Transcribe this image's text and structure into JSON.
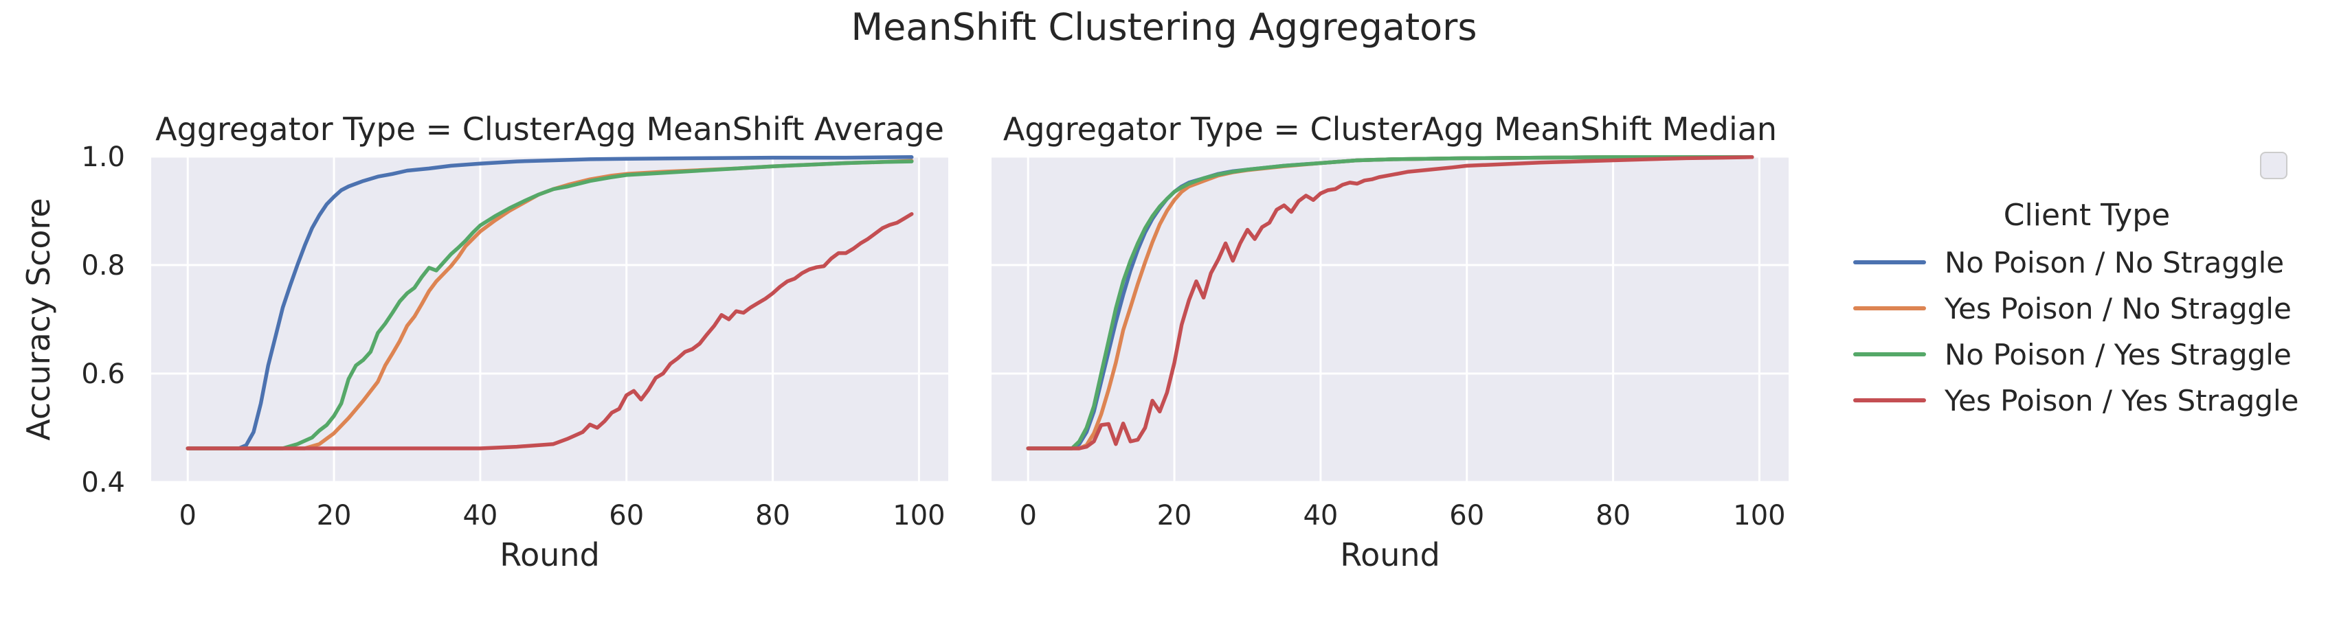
{
  "figure": {
    "title": "MeanShift Clustering Aggregators"
  },
  "legend": {
    "title": "Client Type",
    "entries": [
      {
        "name": "No Poison / No Straggle",
        "color": "#4c72b0"
      },
      {
        "name": "Yes Poison / No Straggle",
        "color": "#dd8452"
      },
      {
        "name": "No Poison / Yes Straggle",
        "color": "#55a868"
      },
      {
        "name": "Yes Poison / Yes Straggle",
        "color": "#c44e52"
      }
    ],
    "placement": "right"
  },
  "chart_data": [
    {
      "type": "line",
      "title": "Aggregator Type = ClusterAgg MeanShift Average",
      "xlabel": "Round",
      "ylabel": "Accuracy Score",
      "xlim": [
        -5,
        104
      ],
      "ylim": [
        0.4,
        1.0
      ],
      "xticks": [
        0,
        20,
        40,
        60,
        80,
        100
      ],
      "yticks": [
        0.4,
        0.6,
        0.8,
        1.0
      ],
      "xtick_labels": [
        "0",
        "20",
        "40",
        "60",
        "80",
        "100"
      ],
      "ytick_labels": [
        "0.4",
        "0.6",
        "0.8",
        "1.0"
      ],
      "grid": true,
      "series": [
        {
          "name": "No Poison / No Straggle",
          "color": "#4c72b0",
          "x": [
            0,
            7,
            8,
            9,
            10,
            11,
            12,
            13,
            14,
            15,
            16,
            17,
            18,
            19,
            20,
            21,
            22,
            24,
            26,
            28,
            30,
            33,
            36,
            40,
            45,
            50,
            55,
            60,
            70,
            80,
            90,
            99
          ],
          "y": [
            0.462,
            0.462,
            0.468,
            0.492,
            0.545,
            0.615,
            0.668,
            0.722,
            0.762,
            0.8,
            0.836,
            0.868,
            0.892,
            0.912,
            0.926,
            0.938,
            0.945,
            0.955,
            0.963,
            0.968,
            0.974,
            0.978,
            0.983,
            0.987,
            0.991,
            0.993,
            0.995,
            0.996,
            0.997,
            0.998,
            0.998,
            0.999
          ]
        },
        {
          "name": "Yes Poison / No Straggle",
          "color": "#dd8452",
          "x": [
            0,
            16,
            18,
            20,
            22,
            24,
            26,
            27,
            28,
            29,
            30,
            31,
            32,
            33,
            34,
            35,
            36,
            37,
            38,
            40,
            42,
            44,
            46,
            48,
            50,
            52,
            55,
            58,
            60,
            65,
            70,
            75,
            80,
            85,
            90,
            95,
            99
          ],
          "y": [
            0.462,
            0.462,
            0.47,
            0.49,
            0.518,
            0.55,
            0.585,
            0.615,
            0.637,
            0.66,
            0.688,
            0.705,
            0.728,
            0.752,
            0.77,
            0.784,
            0.798,
            0.815,
            0.835,
            0.862,
            0.882,
            0.9,
            0.915,
            0.93,
            0.94,
            0.948,
            0.958,
            0.965,
            0.968,
            0.972,
            0.975,
            0.978,
            0.982,
            0.985,
            0.988,
            0.99,
            0.992
          ]
        },
        {
          "name": "No Poison / Yes Straggle",
          "color": "#55a868",
          "x": [
            0,
            13,
            15,
            17,
            18,
            19,
            20,
            21,
            22,
            23,
            24,
            25,
            26,
            27,
            28,
            29,
            30,
            31,
            32,
            33,
            34,
            35,
            36,
            37,
            38,
            39,
            40,
            42,
            44,
            46,
            48,
            50,
            52,
            55,
            58,
            60,
            65,
            70,
            75,
            80,
            85,
            90,
            95,
            99
          ],
          "y": [
            0.462,
            0.462,
            0.47,
            0.482,
            0.495,
            0.505,
            0.522,
            0.545,
            0.59,
            0.615,
            0.625,
            0.64,
            0.675,
            0.692,
            0.712,
            0.733,
            0.748,
            0.758,
            0.778,
            0.795,
            0.79,
            0.805,
            0.82,
            0.832,
            0.845,
            0.86,
            0.873,
            0.89,
            0.905,
            0.918,
            0.93,
            0.94,
            0.945,
            0.955,
            0.962,
            0.966,
            0.97,
            0.974,
            0.978,
            0.982,
            0.985,
            0.988,
            0.99,
            0.991
          ]
        },
        {
          "name": "Yes Poison / Yes Straggle",
          "color": "#c44e52",
          "x": [
            0,
            40,
            45,
            50,
            52,
            54,
            55,
            56,
            57,
            58,
            59,
            60,
            61,
            62,
            63,
            64,
            65,
            66,
            67,
            68,
            69,
            70,
            71,
            72,
            73,
            74,
            75,
            76,
            77,
            78,
            79,
            80,
            81,
            82,
            83,
            84,
            85,
            86,
            87,
            88,
            89,
            90,
            91,
            92,
            93,
            94,
            95,
            96,
            97,
            98,
            99
          ],
          "y": [
            0.462,
            0.462,
            0.465,
            0.47,
            0.48,
            0.492,
            0.506,
            0.5,
            0.512,
            0.528,
            0.535,
            0.56,
            0.568,
            0.552,
            0.57,
            0.592,
            0.6,
            0.618,
            0.628,
            0.64,
            0.645,
            0.655,
            0.672,
            0.688,
            0.708,
            0.7,
            0.715,
            0.712,
            0.722,
            0.73,
            0.738,
            0.748,
            0.76,
            0.77,
            0.775,
            0.785,
            0.792,
            0.796,
            0.798,
            0.812,
            0.822,
            0.822,
            0.83,
            0.84,
            0.848,
            0.858,
            0.868,
            0.874,
            0.878,
            0.886,
            0.894
          ]
        }
      ]
    },
    {
      "type": "line",
      "title": "Aggregator Type = ClusterAgg MeanShift Median",
      "xlabel": "Round",
      "ylabel": "",
      "xlim": [
        -5,
        104
      ],
      "ylim": [
        0.4,
        1.0
      ],
      "xticks": [
        0,
        20,
        40,
        60,
        80,
        100
      ],
      "yticks": [
        0.4,
        0.6,
        0.8,
        1.0
      ],
      "xtick_labels": [
        "0",
        "20",
        "40",
        "60",
        "80",
        "100"
      ],
      "ytick_labels": [],
      "grid": true,
      "series": [
        {
          "name": "No Poison / No Straggle",
          "color": "#4c72b0",
          "x": [
            0,
            6,
            7,
            8,
            9,
            10,
            11,
            12,
            13,
            14,
            15,
            16,
            17,
            18,
            19,
            20,
            21,
            22,
            24,
            26,
            28,
            30,
            35,
            40,
            45,
            50,
            60,
            70,
            80,
            90,
            99
          ],
          "y": [
            0.462,
            0.462,
            0.47,
            0.492,
            0.53,
            0.585,
            0.64,
            0.695,
            0.745,
            0.79,
            0.828,
            0.86,
            0.885,
            0.905,
            0.922,
            0.935,
            0.945,
            0.952,
            0.96,
            0.968,
            0.973,
            0.976,
            0.983,
            0.988,
            0.993,
            0.995,
            0.997,
            0.998,
            0.999,
            0.999,
            0.999
          ]
        },
        {
          "name": "Yes Poison / No Straggle",
          "color": "#dd8452",
          "x": [
            0,
            7,
            8,
            9,
            10,
            11,
            12,
            13,
            14,
            15,
            16,
            17,
            18,
            19,
            20,
            21,
            22,
            24,
            26,
            28,
            30,
            35,
            40,
            45,
            50,
            60,
            70,
            80,
            90,
            99
          ],
          "y": [
            0.462,
            0.462,
            0.468,
            0.49,
            0.525,
            0.57,
            0.62,
            0.68,
            0.722,
            0.765,
            0.805,
            0.842,
            0.875,
            0.9,
            0.92,
            0.935,
            0.945,
            0.955,
            0.965,
            0.971,
            0.975,
            0.982,
            0.988,
            0.993,
            0.995,
            0.997,
            0.998,
            0.999,
            0.999,
            0.999
          ]
        },
        {
          "name": "No Poison / Yes Straggle",
          "color": "#55a868",
          "x": [
            0,
            6,
            7,
            8,
            9,
            10,
            11,
            12,
            13,
            14,
            15,
            16,
            17,
            18,
            19,
            20,
            21,
            22,
            24,
            26,
            28,
            30,
            35,
            40,
            45,
            50,
            60,
            70,
            80,
            90,
            99
          ],
          "y": [
            0.462,
            0.462,
            0.475,
            0.5,
            0.54,
            0.6,
            0.66,
            0.72,
            0.77,
            0.808,
            0.84,
            0.868,
            0.89,
            0.908,
            0.922,
            0.935,
            0.943,
            0.95,
            0.96,
            0.967,
            0.972,
            0.976,
            0.983,
            0.988,
            0.993,
            0.995,
            0.997,
            0.998,
            0.999,
            0.999,
            0.999
          ]
        },
        {
          "name": "Yes Poison / Yes Straggle",
          "color": "#c44e52",
          "x": [
            0,
            7,
            8,
            9,
            10,
            11,
            12,
            13,
            14,
            15,
            16,
            17,
            18,
            19,
            20,
            21,
            22,
            23,
            24,
            25,
            26,
            27,
            28,
            29,
            30,
            31,
            32,
            33,
            34,
            35,
            36,
            37,
            38,
            39,
            40,
            41,
            42,
            43,
            44,
            45,
            46,
            47,
            48,
            50,
            52,
            55,
            58,
            60,
            65,
            70,
            75,
            80,
            85,
            90,
            95,
            99
          ],
          "y": [
            0.462,
            0.462,
            0.465,
            0.475,
            0.505,
            0.507,
            0.47,
            0.508,
            0.475,
            0.478,
            0.5,
            0.55,
            0.53,
            0.565,
            0.62,
            0.69,
            0.735,
            0.77,
            0.74,
            0.785,
            0.81,
            0.84,
            0.808,
            0.84,
            0.865,
            0.848,
            0.87,
            0.878,
            0.902,
            0.91,
            0.898,
            0.918,
            0.928,
            0.92,
            0.932,
            0.938,
            0.94,
            0.948,
            0.952,
            0.95,
            0.956,
            0.958,
            0.962,
            0.967,
            0.972,
            0.976,
            0.98,
            0.983,
            0.986,
            0.989,
            0.991,
            0.993,
            0.995,
            0.997,
            0.998,
            0.999
          ]
        }
      ]
    }
  ]
}
